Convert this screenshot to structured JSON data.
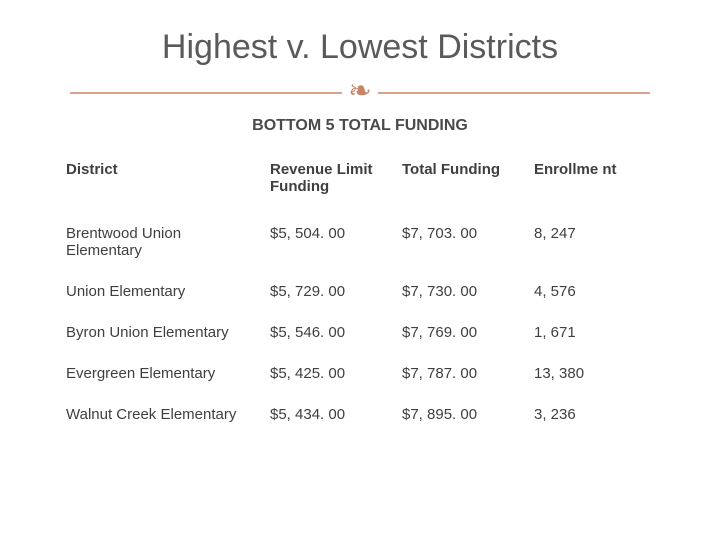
{
  "title": "Highest v. Lowest Districts",
  "subtitle": "BOTTOM 5 TOTAL FUNDING",
  "divider": {
    "rule_color": "#d9a38a",
    "flourish_color": "#c98465",
    "flourish_glyph": "❧"
  },
  "table": {
    "columns": [
      {
        "key": "district",
        "label": "District",
        "class": "col-district"
      },
      {
        "key": "revenue",
        "label": "Revenue Limit Funding",
        "class": "col-rev"
      },
      {
        "key": "total",
        "label": "Total Funding",
        "class": "col-total"
      },
      {
        "key": "enroll",
        "label": "Enrollme nt",
        "class": "col-enroll"
      }
    ],
    "rows": [
      {
        "district": "Brentwood Union Elementary",
        "revenue": "$5, 504. 00",
        "total": "$7, 703. 00",
        "enroll": "8, 247"
      },
      {
        "district": "Union Elementary",
        "revenue": "$5, 729. 00",
        "total": "$7, 730. 00",
        "enroll": "4, 576"
      },
      {
        "district": "Byron Union Elementary",
        "revenue": "$5, 546. 00",
        "total": "$7, 769. 00",
        "enroll": "1, 671"
      },
      {
        "district": "Evergreen Elementary",
        "revenue": "$5, 425. 00",
        "total": "$7, 787. 00",
        "enroll": "13, 380"
      },
      {
        "district": "Walnut Creek Elementary",
        "revenue": "$5, 434. 00",
        "total": "$7, 895. 00",
        "enroll": "3, 236"
      }
    ]
  }
}
